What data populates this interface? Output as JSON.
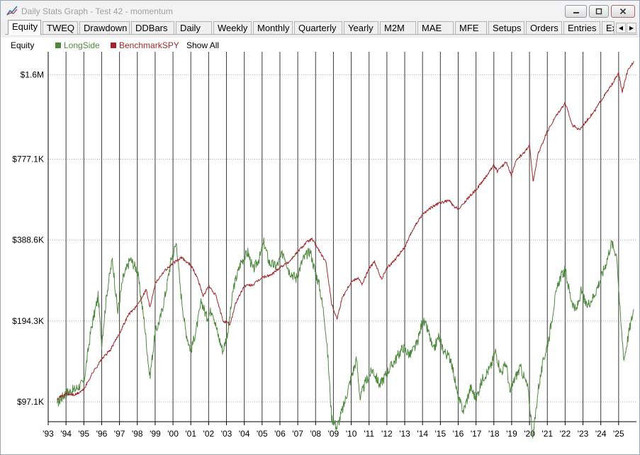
{
  "window": {
    "title": "Daily Stats Graph - Test 42 - momentum",
    "buttons": {
      "minimize_icon": "minimize-icon",
      "maximize_icon": "maximize-icon",
      "close_icon": "close-icon"
    }
  },
  "tabs": [
    {
      "label": "Equity",
      "active": true
    },
    {
      "label": "TWEQ"
    },
    {
      "label": "Drawdown"
    },
    {
      "label": "DDBars"
    },
    {
      "label": "Daily"
    },
    {
      "label": "Weekly"
    },
    {
      "label": "Monthly"
    },
    {
      "label": "Quarterly"
    },
    {
      "label": "Yearly"
    },
    {
      "label": "M2M"
    },
    {
      "label": "MAE"
    },
    {
      "label": "MFE"
    },
    {
      "label": "Setups"
    },
    {
      "label": "Orders"
    },
    {
      "label": "Entries"
    },
    {
      "label": "Ex"
    }
  ],
  "tab_scroll": {
    "left": "◀",
    "right": "▶"
  },
  "legend": {
    "label": "Equity",
    "series1": "LongSide",
    "series2": "BenchmarkSPY",
    "show_all": "Show All",
    "colors": {
      "series1": "#4e8a3e",
      "series2": "#a0282c"
    }
  },
  "chart_data": {
    "type": "line",
    "y_scale": "log",
    "ylim": [
      82000,
      1950000
    ],
    "y_ticks": [
      {
        "value": 97100,
        "label": "$97.1K"
      },
      {
        "value": 194300,
        "label": "$194.3K"
      },
      {
        "value": 388600,
        "label": "$388.6K"
      },
      {
        "value": 777100,
        "label": "$777.1K"
      },
      {
        "value": 1600000,
        "label": "$1.6M"
      }
    ],
    "x_range": [
      1993,
      2026
    ],
    "x_ticks": [
      "'93",
      "'94",
      "'95",
      "'96",
      "'97",
      "'98",
      "'99",
      "'00",
      "'01",
      "'02",
      "'03",
      "'04",
      "'05",
      "'06",
      "'07",
      "'08",
      "'09",
      "'10",
      "'11",
      "'12",
      "'13",
      "'14",
      "'15",
      "'16",
      "'17",
      "'18",
      "'19",
      "'20",
      "'21",
      "'22",
      "'23",
      "'24",
      "'25"
    ],
    "x_tick_years": [
      1993,
      1994,
      1995,
      1996,
      1997,
      1998,
      1999,
      2000,
      2001,
      2002,
      2003,
      2004,
      2005,
      2006,
      2007,
      2008,
      2009,
      2010,
      2011,
      2012,
      2013,
      2014,
      2015,
      2016,
      2017,
      2018,
      2019,
      2020,
      2021,
      2022,
      2023,
      2024,
      2025
    ],
    "series": [
      {
        "name": "BenchmarkSPY",
        "color": "#a0282c",
        "points": [
          [
            1993.5,
            100000
          ],
          [
            1994.0,
            104000
          ],
          [
            1994.5,
            103000
          ],
          [
            1995.0,
            108000
          ],
          [
            1995.5,
            125000
          ],
          [
            1996.0,
            140000
          ],
          [
            1996.5,
            152000
          ],
          [
            1997.0,
            175000
          ],
          [
            1997.5,
            205000
          ],
          [
            1998.0,
            222000
          ],
          [
            1998.5,
            255000
          ],
          [
            1998.7,
            218000
          ],
          [
            1999.0,
            268000
          ],
          [
            1999.5,
            298000
          ],
          [
            2000.0,
            318000
          ],
          [
            2000.5,
            335000
          ],
          [
            2000.8,
            320000
          ],
          [
            2001.0,
            315000
          ],
          [
            2001.4,
            278000
          ],
          [
            2001.7,
            240000
          ],
          [
            2002.0,
            262000
          ],
          [
            2002.4,
            242000
          ],
          [
            2002.8,
            195000
          ],
          [
            2003.2,
            188000
          ],
          [
            2003.5,
            225000
          ],
          [
            2004.0,
            262000
          ],
          [
            2004.5,
            265000
          ],
          [
            2005.0,
            282000
          ],
          [
            2005.5,
            288000
          ],
          [
            2006.0,
            308000
          ],
          [
            2006.5,
            322000
          ],
          [
            2007.0,
            352000
          ],
          [
            2007.5,
            382000
          ],
          [
            2007.8,
            392000
          ],
          [
            2008.2,
            355000
          ],
          [
            2008.6,
            318000
          ],
          [
            2008.9,
            225000
          ],
          [
            2009.2,
            198000
          ],
          [
            2009.5,
            238000
          ],
          [
            2010.0,
            272000
          ],
          [
            2010.4,
            282000
          ],
          [
            2010.6,
            265000
          ],
          [
            2011.0,
            305000
          ],
          [
            2011.3,
            322000
          ],
          [
            2011.7,
            278000
          ],
          [
            2012.0,
            305000
          ],
          [
            2012.5,
            332000
          ],
          [
            2013.0,
            365000
          ],
          [
            2013.5,
            430000
          ],
          [
            2014.0,
            485000
          ],
          [
            2014.5,
            515000
          ],
          [
            2015.0,
            535000
          ],
          [
            2015.5,
            545000
          ],
          [
            2015.8,
            512000
          ],
          [
            2016.1,
            510000
          ],
          [
            2016.5,
            552000
          ],
          [
            2017.0,
            598000
          ],
          [
            2017.5,
            660000
          ],
          [
            2018.0,
            740000
          ],
          [
            2018.2,
            700000
          ],
          [
            2018.7,
            760000
          ],
          [
            2018.98,
            675000
          ],
          [
            2019.3,
            780000
          ],
          [
            2019.7,
            820000
          ],
          [
            2020.0,
            880000
          ],
          [
            2020.2,
            640000
          ],
          [
            2020.5,
            820000
          ],
          [
            2021.0,
            985000
          ],
          [
            2021.5,
            1130000
          ],
          [
            2022.0,
            1260000
          ],
          [
            2022.4,
            1040000
          ],
          [
            2022.8,
            1000000
          ],
          [
            2023.2,
            1080000
          ],
          [
            2023.6,
            1160000
          ],
          [
            2024.0,
            1280000
          ],
          [
            2024.5,
            1430000
          ],
          [
            2025.0,
            1620000
          ],
          [
            2025.2,
            1380000
          ],
          [
            2025.5,
            1650000
          ],
          [
            2025.85,
            1800000
          ]
        ]
      },
      {
        "name": "LongSide",
        "color": "#4e8a3e",
        "points": [
          [
            1993.5,
            96000
          ],
          [
            1994.0,
            105000
          ],
          [
            1994.5,
            108000
          ],
          [
            1995.0,
            115000
          ],
          [
            1995.4,
            180000
          ],
          [
            1995.8,
            240000
          ],
          [
            1996.0,
            160000
          ],
          [
            1996.3,
            250000
          ],
          [
            1996.6,
            330000
          ],
          [
            1996.9,
            210000
          ],
          [
            1997.2,
            280000
          ],
          [
            1997.6,
            330000
          ],
          [
            1998.0,
            300000
          ],
          [
            1998.4,
            190000
          ],
          [
            1998.7,
            120000
          ],
          [
            1999.0,
            175000
          ],
          [
            1999.3,
            200000
          ],
          [
            1999.6,
            250000
          ],
          [
            1999.9,
            330000
          ],
          [
            2000.2,
            380000
          ],
          [
            2000.4,
            260000
          ],
          [
            2000.7,
            180000
          ],
          [
            2001.0,
            150000
          ],
          [
            2001.3,
            180000
          ],
          [
            2001.6,
            230000
          ],
          [
            2001.9,
            200000
          ],
          [
            2002.2,
            215000
          ],
          [
            2002.5,
            175000
          ],
          [
            2002.8,
            150000
          ],
          [
            2003.1,
            180000
          ],
          [
            2003.4,
            260000
          ],
          [
            2003.8,
            320000
          ],
          [
            2004.2,
            350000
          ],
          [
            2004.5,
            300000
          ],
          [
            2004.9,
            340000
          ],
          [
            2005.1,
            380000
          ],
          [
            2005.4,
            320000
          ],
          [
            2005.8,
            310000
          ],
          [
            2006.2,
            350000
          ],
          [
            2006.5,
            300000
          ],
          [
            2006.9,
            280000
          ],
          [
            2007.3,
            330000
          ],
          [
            2007.7,
            355000
          ],
          [
            2007.9,
            310000
          ],
          [
            2008.2,
            265000
          ],
          [
            2008.5,
            200000
          ],
          [
            2008.7,
            140000
          ],
          [
            2008.9,
            85000
          ],
          [
            2009.2,
            78000
          ],
          [
            2009.6,
            95000
          ],
          [
            2010.0,
            120000
          ],
          [
            2010.3,
            140000
          ],
          [
            2010.5,
            100000
          ],
          [
            2010.8,
            115000
          ],
          [
            2011.2,
            128000
          ],
          [
            2011.6,
            112000
          ],
          [
            2012.0,
            125000
          ],
          [
            2012.5,
            140000
          ],
          [
            2012.9,
            155000
          ],
          [
            2013.3,
            145000
          ],
          [
            2013.7,
            160000
          ],
          [
            2014.0,
            195000
          ],
          [
            2014.3,
            180000
          ],
          [
            2014.6,
            150000
          ],
          [
            2014.9,
            170000
          ],
          [
            2015.2,
            150000
          ],
          [
            2015.6,
            140000
          ],
          [
            2016.0,
            100000
          ],
          [
            2016.3,
            90000
          ],
          [
            2016.7,
            110000
          ],
          [
            2017.0,
            100000
          ],
          [
            2017.4,
            120000
          ],
          [
            2017.8,
            130000
          ],
          [
            2018.1,
            150000
          ],
          [
            2018.4,
            125000
          ],
          [
            2018.7,
            135000
          ],
          [
            2018.9,
            105000
          ],
          [
            2019.2,
            120000
          ],
          [
            2019.5,
            130000
          ],
          [
            2019.9,
            110000
          ],
          [
            2020.2,
            72000
          ],
          [
            2020.5,
            110000
          ],
          [
            2020.8,
            140000
          ],
          [
            2021.1,
            170000
          ],
          [
            2021.4,
            230000
          ],
          [
            2021.7,
            280000
          ],
          [
            2022.0,
            300000
          ],
          [
            2022.3,
            240000
          ],
          [
            2022.6,
            210000
          ],
          [
            2022.9,
            250000
          ],
          [
            2023.2,
            220000
          ],
          [
            2023.6,
            240000
          ],
          [
            2024.0,
            280000
          ],
          [
            2024.3,
            320000
          ],
          [
            2024.6,
            380000
          ],
          [
            2024.9,
            340000
          ],
          [
            2025.1,
            200000
          ],
          [
            2025.3,
            140000
          ],
          [
            2025.6,
            180000
          ],
          [
            2025.85,
            215000
          ]
        ]
      }
    ]
  }
}
